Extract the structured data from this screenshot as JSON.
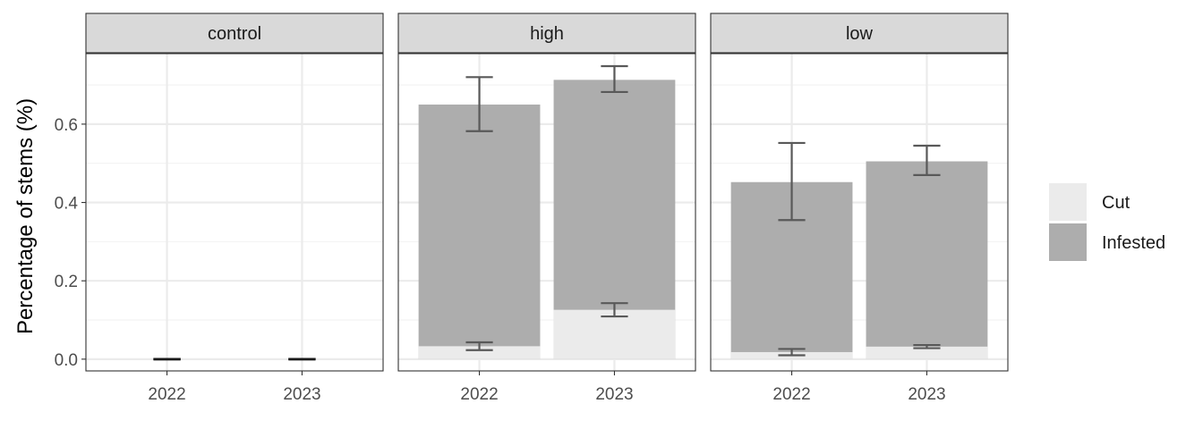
{
  "chart_data": {
    "type": "bar",
    "stacked": true,
    "facet_by": "treatment",
    "facets": [
      "control",
      "high",
      "low"
    ],
    "categories": [
      "2022",
      "2023"
    ],
    "ylabel": "Percentage of stems (%)",
    "xlabel": "",
    "ylim": [
      -0.03,
      0.78
    ],
    "yticks": [
      0.0,
      0.2,
      0.4,
      0.6
    ],
    "ytick_labels": [
      "0.0",
      "0.2",
      "0.4",
      "0.6"
    ],
    "grid": true,
    "legend": {
      "position": "right",
      "entries": [
        {
          "label": "Cut",
          "color": "#ebebeb"
        },
        {
          "label": "Infested",
          "color": "#adadad"
        }
      ]
    },
    "series": [
      {
        "name": "Cut",
        "color": "#ebebeb",
        "values": {
          "control": [
            0.0,
            0.0
          ],
          "high": [
            0.033,
            0.126
          ],
          "low": [
            0.018,
            0.032
          ]
        },
        "error": {
          "control": [
            [
              0.0,
              0.0
            ],
            [
              0.0,
              0.0
            ]
          ],
          "high": [
            [
              0.023,
              0.043
            ],
            [
              0.109,
              0.143
            ]
          ],
          "low": [
            [
              0.01,
              0.026
            ],
            [
              0.028,
              0.036
            ]
          ]
        }
      },
      {
        "name": "Infested",
        "color": "#adadad",
        "values": {
          "control": [
            0.0,
            0.0
          ],
          "high": [
            0.65,
            0.713
          ],
          "low": [
            0.452,
            0.505
          ]
        },
        "error": {
          "control": [
            [
              0.0,
              0.0
            ],
            [
              0.0,
              0.0
            ]
          ],
          "high": [
            [
              0.582,
              0.72
            ],
            [
              0.682,
              0.748
            ]
          ],
          "low": [
            [
              0.355,
              0.552
            ],
            [
              0.47,
              0.545
            ]
          ]
        }
      }
    ]
  }
}
